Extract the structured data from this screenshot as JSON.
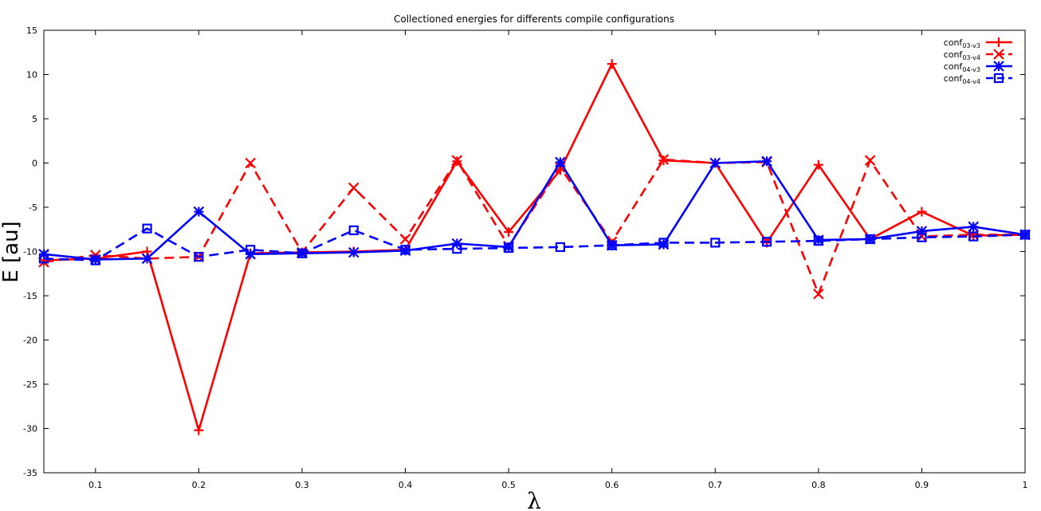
{
  "chart_data": {
    "type": "line",
    "title": "Collectioned energies for differents compile configurations",
    "xlabel": "λ",
    "ylabel": "E [au]",
    "xlim": [
      0.05,
      1.0
    ],
    "ylim": [
      -35,
      15
    ],
    "xticks": [
      0.1,
      0.2,
      0.3,
      0.4,
      0.5,
      0.6,
      0.7,
      0.8,
      0.9,
      1.0
    ],
    "xtick_labels": [
      "0.1",
      "0.2",
      "0.3",
      "0.4",
      "0.5",
      "0.6",
      "0.7",
      "0.8",
      "0.9",
      "1"
    ],
    "yticks": [
      15,
      10,
      5,
      0,
      -5,
      -10,
      -15,
      -20,
      -25,
      -30,
      -35
    ],
    "ytick_labels": [
      "15",
      "10",
      "5",
      "0",
      "-5",
      "-10",
      "-15",
      "-20",
      "-25",
      "-30",
      "-35"
    ],
    "legend_position": "top-right",
    "x": [
      0.05,
      0.1,
      0.15,
      0.2,
      0.25,
      0.3,
      0.35,
      0.4,
      0.45,
      0.5,
      0.55,
      0.6,
      0.65,
      0.7,
      0.75,
      0.8,
      0.85,
      0.9,
      0.95,
      1.0
    ],
    "series": [
      {
        "name": "conf03-v3",
        "name_base": "conf",
        "name_sub": "03-v3",
        "color": "#ff0000",
        "dash": "solid",
        "marker": "plus",
        "values": [
          -11.0,
          -10.8,
          -10.0,
          -30.2,
          -10.2,
          -10.1,
          -10.0,
          -9.8,
          0.2,
          -7.8,
          -0.8,
          11.2,
          0.3,
          0.0,
          -9.0,
          -0.2,
          -8.6,
          -5.5,
          -8.2,
          -8.1
        ]
      },
      {
        "name": "conf03-v4",
        "name_base": "conf",
        "name_sub": "03-v4",
        "color": "#ff0000",
        "dash": "dashed",
        "marker": "cross",
        "values": [
          -11.2,
          -10.4,
          -10.8,
          -10.6,
          0.0,
          -10.1,
          -2.8,
          -8.6,
          0.3,
          -9.4,
          -0.5,
          -8.9,
          0.4,
          0.0,
          0.1,
          -14.8,
          0.3,
          -8.3,
          -8.1,
          -8.1
        ]
      },
      {
        "name": "conf04-v3",
        "name_base": "conf",
        "name_sub": "04-v3",
        "color": "#0000ff",
        "dash": "solid",
        "marker": "star",
        "values": [
          -10.3,
          -10.9,
          -10.8,
          -5.5,
          -10.3,
          -10.2,
          -10.1,
          -9.9,
          -9.1,
          -9.5,
          0.1,
          -9.3,
          -9.2,
          0.0,
          0.2,
          -8.7,
          -8.6,
          -7.7,
          -7.2,
          -8.1
        ]
      },
      {
        "name": "conf04-v4",
        "name_base": "conf",
        "name_sub": "04-v4",
        "color": "#0000ff",
        "dash": "dashed",
        "marker": "square",
        "values": [
          -10.8,
          -11.0,
          -7.4,
          -10.6,
          -9.8,
          -10.2,
          -7.6,
          -9.8,
          -9.7,
          -9.6,
          -9.5,
          -9.3,
          -9.0,
          -9.0,
          -8.9,
          -8.8,
          -8.6,
          -8.4,
          -8.3,
          -8.1
        ]
      }
    ]
  }
}
